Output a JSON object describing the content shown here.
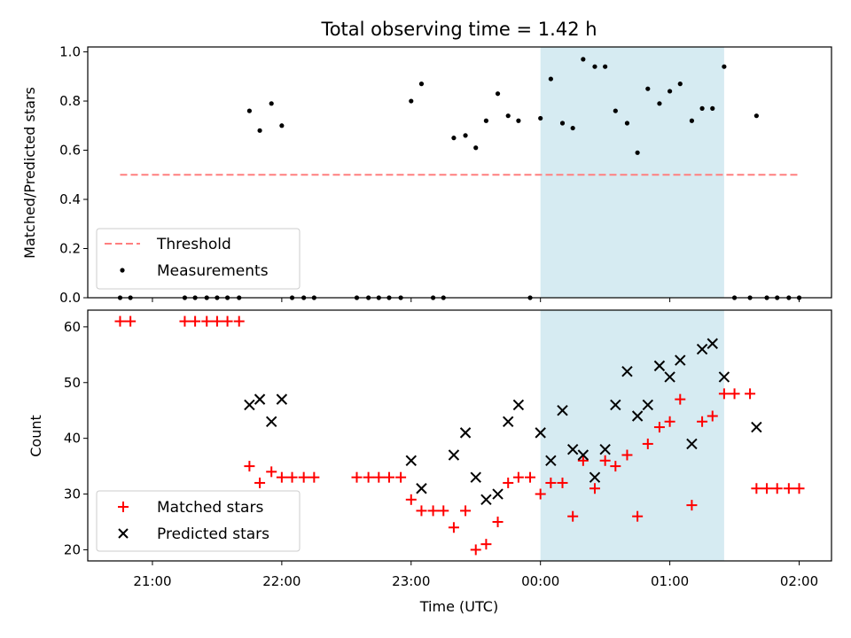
{
  "chart_data": [
    {
      "type": "scatter",
      "title": "Total observing time = 1.42 h",
      "xlabel": "",
      "ylabel": "Matched/Predicted stars",
      "ylim": [
        0,
        1.02
      ],
      "yticks": [
        "0.0",
        "0.2",
        "0.4",
        "0.6",
        "0.8",
        "1.0"
      ],
      "highlight_span": {
        "start": 24.0,
        "end": 25.42,
        "color": "#add8e6"
      },
      "threshold": {
        "name": "Threshold",
        "value": 0.5,
        "x": [
          20.75,
          26.0
        ],
        "color": "#ff7f7f"
      },
      "series": [
        {
          "name": "Measurements",
          "color": "#000000",
          "marker": "dot",
          "points": [
            [
              20.75,
              0
            ],
            [
              20.83,
              0
            ],
            [
              21.25,
              0
            ],
            [
              21.33,
              0
            ],
            [
              21.42,
              0
            ],
            [
              21.5,
              0
            ],
            [
              21.58,
              0
            ],
            [
              21.67,
              0
            ],
            [
              21.75,
              0.76
            ],
            [
              21.83,
              0.68
            ],
            [
              21.92,
              0.79
            ],
            [
              22.0,
              0.7
            ],
            [
              22.08,
              0
            ],
            [
              22.17,
              0
            ],
            [
              22.25,
              0
            ],
            [
              22.58,
              0
            ],
            [
              22.67,
              0
            ],
            [
              22.83,
              0
            ],
            [
              22.92,
              0
            ],
            [
              23.0,
              0.8
            ],
            [
              23.08,
              0.87
            ],
            [
              22.75,
              0
            ],
            [
              23.17,
              0
            ],
            [
              23.25,
              0
            ],
            [
              23.33,
              0.65
            ],
            [
              23.42,
              0.66
            ],
            [
              23.5,
              0.61
            ],
            [
              23.58,
              0.72
            ],
            [
              23.67,
              0.83
            ],
            [
              23.75,
              0.74
            ],
            [
              23.83,
              0.72
            ],
            [
              23.92,
              0
            ],
            [
              24.0,
              0.73
            ],
            [
              24.08,
              0.89
            ],
            [
              24.17,
              0.71
            ],
            [
              24.25,
              0.69
            ],
            [
              24.33,
              0.97
            ],
            [
              24.42,
              0.94
            ],
            [
              24.5,
              0.94
            ],
            [
              24.58,
              0.76
            ],
            [
              24.67,
              0.71
            ],
            [
              24.75,
              0.59
            ],
            [
              24.83,
              0.85
            ],
            [
              24.92,
              0.79
            ],
            [
              25.0,
              0.84
            ],
            [
              25.08,
              0.87
            ],
            [
              25.17,
              0.72
            ],
            [
              25.25,
              0.77
            ],
            [
              25.33,
              0.77
            ],
            [
              25.42,
              0.94
            ],
            [
              25.5,
              0
            ],
            [
              25.62,
              0
            ],
            [
              25.67,
              0.74
            ],
            [
              25.75,
              0
            ],
            [
              25.83,
              0
            ],
            [
              25.92,
              0
            ],
            [
              26.0,
              0
            ]
          ]
        }
      ],
      "legend": {
        "placement": "lower-left",
        "entries": [
          "Threshold",
          "Measurements"
        ]
      }
    },
    {
      "type": "scatter",
      "xlabel": "Time (UTC)",
      "ylabel": "Count",
      "ylim": [
        18,
        63
      ],
      "xlim": [
        20.5,
        26.25
      ],
      "yticks": [
        "20",
        "30",
        "40",
        "50",
        "60"
      ],
      "xticks": [
        {
          "value": 21,
          "label": "21:00"
        },
        {
          "value": 22,
          "label": "22:00"
        },
        {
          "value": 23,
          "label": "23:00"
        },
        {
          "value": 24,
          "label": "00:00"
        },
        {
          "value": 25,
          "label": "01:00"
        },
        {
          "value": 26,
          "label": "02:00"
        }
      ],
      "highlight_span": {
        "start": 24.0,
        "end": 25.42,
        "color": "#add8e6"
      },
      "series": [
        {
          "name": "Matched stars",
          "color": "#ff0000",
          "marker": "plus",
          "points": [
            [
              20.75,
              61
            ],
            [
              20.83,
              61
            ],
            [
              21.25,
              61
            ],
            [
              21.33,
              61
            ],
            [
              21.42,
              61
            ],
            [
              21.5,
              61
            ],
            [
              21.58,
              61
            ],
            [
              21.67,
              61
            ],
            [
              21.75,
              35
            ],
            [
              21.83,
              32
            ],
            [
              21.92,
              34
            ],
            [
              22.0,
              33
            ],
            [
              22.08,
              33
            ],
            [
              22.17,
              33
            ],
            [
              22.25,
              33
            ],
            [
              22.58,
              33
            ],
            [
              22.67,
              33
            ],
            [
              22.75,
              33
            ],
            [
              22.83,
              33
            ],
            [
              22.92,
              33
            ],
            [
              23.0,
              29
            ],
            [
              23.08,
              27
            ],
            [
              23.17,
              27
            ],
            [
              23.25,
              27
            ],
            [
              23.33,
              24
            ],
            [
              23.42,
              27
            ],
            [
              23.5,
              20
            ],
            [
              23.58,
              21
            ],
            [
              23.67,
              25
            ],
            [
              23.75,
              32
            ],
            [
              23.83,
              33
            ],
            [
              23.92,
              33
            ],
            [
              24.0,
              30
            ],
            [
              24.08,
              32
            ],
            [
              24.17,
              32
            ],
            [
              24.25,
              26
            ],
            [
              24.33,
              36
            ],
            [
              24.42,
              31
            ],
            [
              24.5,
              36
            ],
            [
              24.58,
              35
            ],
            [
              24.67,
              37
            ],
            [
              24.75,
              26
            ],
            [
              24.83,
              39
            ],
            [
              24.92,
              42
            ],
            [
              25.0,
              43
            ],
            [
              25.08,
              47
            ],
            [
              25.17,
              28
            ],
            [
              25.25,
              43
            ],
            [
              25.33,
              44
            ],
            [
              25.42,
              48
            ],
            [
              25.5,
              48
            ],
            [
              25.62,
              48
            ],
            [
              25.67,
              31
            ],
            [
              25.75,
              31
            ],
            [
              25.83,
              31
            ],
            [
              25.92,
              31
            ],
            [
              26.0,
              31
            ]
          ]
        },
        {
          "name": "Predicted stars",
          "color": "#000000",
          "marker": "x",
          "points": [
            [
              21.75,
              46
            ],
            [
              21.83,
              47
            ],
            [
              21.92,
              43
            ],
            [
              22.0,
              47
            ],
            [
              23.0,
              36
            ],
            [
              23.08,
              31
            ],
            [
              23.33,
              37
            ],
            [
              23.42,
              41
            ],
            [
              23.5,
              33
            ],
            [
              23.58,
              29
            ],
            [
              23.67,
              30
            ],
            [
              23.75,
              43
            ],
            [
              23.83,
              46
            ],
            [
              24.0,
              41
            ],
            [
              24.08,
              36
            ],
            [
              24.17,
              45
            ],
            [
              24.25,
              38
            ],
            [
              24.33,
              37
            ],
            [
              24.42,
              33
            ],
            [
              24.5,
              38
            ],
            [
              24.58,
              46
            ],
            [
              24.67,
              52
            ],
            [
              24.75,
              44
            ],
            [
              24.83,
              46
            ],
            [
              24.92,
              53
            ],
            [
              25.0,
              51
            ],
            [
              25.08,
              54
            ],
            [
              25.17,
              39
            ],
            [
              25.25,
              56
            ],
            [
              25.33,
              57
            ],
            [
              25.42,
              51
            ],
            [
              25.67,
              42
            ]
          ]
        }
      ],
      "legend": {
        "placement": "lower-left",
        "entries": [
          "Matched stars",
          "Predicted stars"
        ]
      }
    }
  ]
}
